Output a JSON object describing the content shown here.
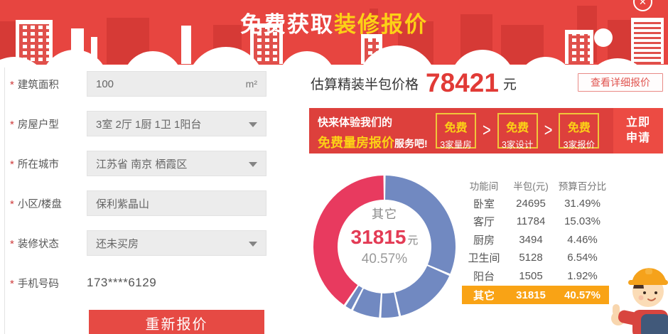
{
  "banner": {
    "title_white": "免费获取",
    "title_yellow": "装修报价",
    "close_glyph": "✕"
  },
  "form": {
    "required_marker": "*",
    "fields": [
      {
        "label": "建筑面积",
        "value": "100",
        "unit": "m²",
        "type": "input"
      },
      {
        "label": "房屋户型",
        "value": "3室 2厅 1厨 1卫 1阳台",
        "type": "select"
      },
      {
        "label": "所在城市",
        "value": "江苏省 南京 栖霞区",
        "type": "select"
      },
      {
        "label": "小区/楼盘",
        "value": "保利紫晶山",
        "type": "input"
      },
      {
        "label": "装修状态",
        "value": "还未买房",
        "type": "select"
      },
      {
        "label": "手机号码",
        "value": "173****6129",
        "type": "text"
      }
    ],
    "submit_label": "重新报价"
  },
  "result": {
    "price_label": "估算精装半包价格",
    "price_value": "78421",
    "price_unit": "元",
    "detail_button": "查看详细报价"
  },
  "promo": {
    "line1": "快来体验我们的",
    "line2_highlight": "免费量房报价",
    "line2_rest": "服务吧!",
    "chevron": ">",
    "steps": [
      {
        "top": "免费",
        "bottom": "3家量房"
      },
      {
        "top": "免费",
        "bottom": "3家设计"
      },
      {
        "top": "免费",
        "bottom": "3家报价"
      }
    ],
    "cta_line1": "立即",
    "cta_line2": "申请"
  },
  "chart_data": {
    "type": "pie",
    "donut": true,
    "start_angle_deg": -90,
    "direction": "clockwise",
    "center": {
      "label": "其它",
      "value": "31815",
      "unit": "元",
      "percent": "40.57%"
    },
    "segments": [
      {
        "name": "卧室",
        "value": 24695,
        "percent": 31.49,
        "color": "#7189c1"
      },
      {
        "name": "客厅",
        "value": 11784,
        "percent": 15.03,
        "color": "#7189c1"
      },
      {
        "name": "厨房",
        "value": 3494,
        "percent": 4.46,
        "color": "#7189c1"
      },
      {
        "name": "卫生间",
        "value": 5128,
        "percent": 6.54,
        "color": "#7189c1"
      },
      {
        "name": "阳台",
        "value": 1505,
        "percent": 1.92,
        "color": "#7189c1"
      },
      {
        "name": "其它",
        "value": 31815,
        "percent": 40.57,
        "color": "#e83a5f"
      }
    ]
  },
  "table": {
    "headers": [
      "功能间",
      "半包(元)",
      "预算百分比"
    ],
    "rows": [
      [
        "卧室",
        "24695",
        "31.49%"
      ],
      [
        "客厅",
        "11784",
        "15.03%"
      ],
      [
        "厨房",
        "3494",
        "4.46%"
      ],
      [
        "卫生间",
        "5128",
        "6.54%"
      ],
      [
        "阳台",
        "1505",
        "1.92%"
      ],
      [
        "其它",
        "31815",
        "40.57%"
      ]
    ],
    "highlight_row_index": 5,
    "highlight_color": "#f9a315"
  }
}
